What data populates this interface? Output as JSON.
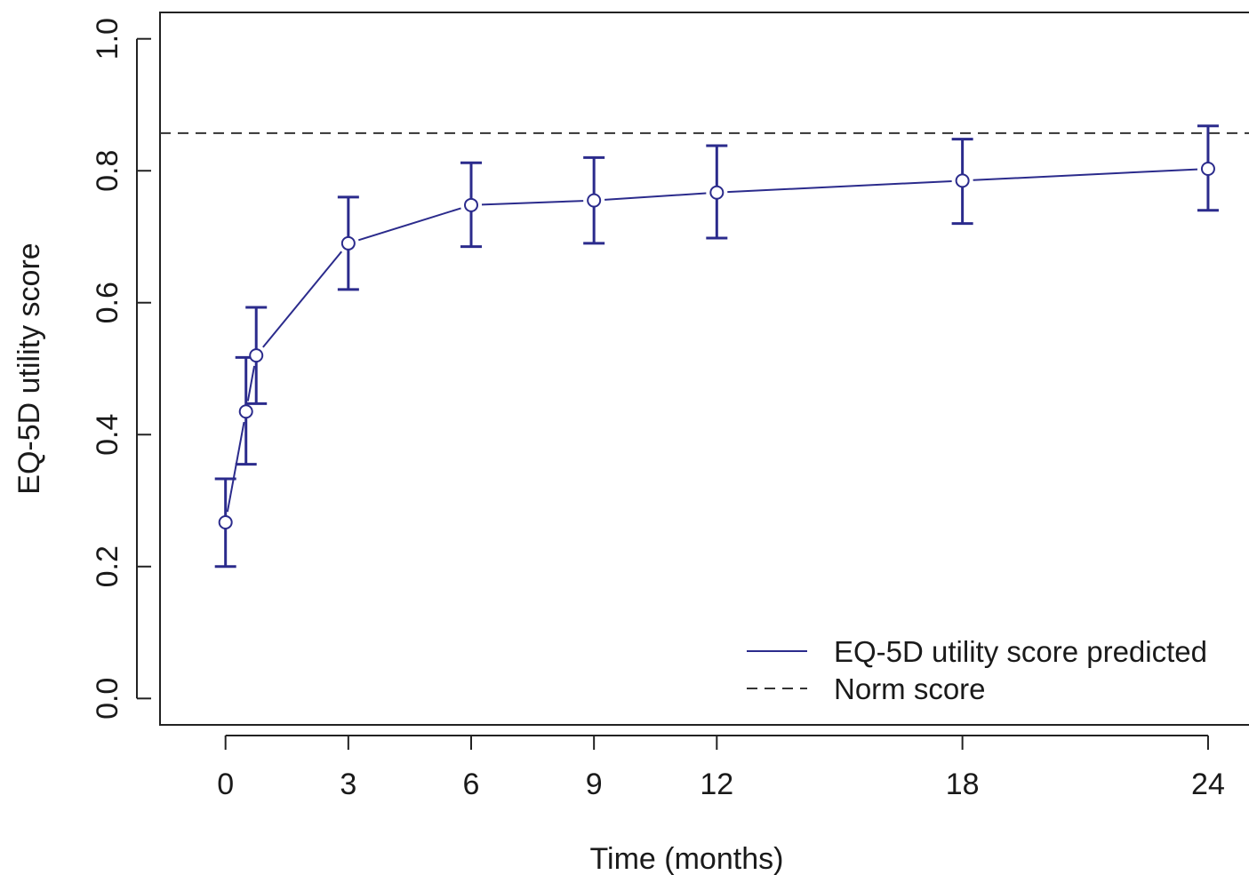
{
  "chart_data": {
    "type": "line",
    "xlabel": "Time (months)",
    "ylabel": "EQ-5D utility score",
    "xlim": [
      -1.6,
      25.0
    ],
    "ylim": [
      -0.04,
      1.04
    ],
    "x_ticks": [
      0,
      3,
      6,
      9,
      12,
      18,
      24
    ],
    "x_tick_labels": [
      "0",
      "3",
      "6",
      "9",
      "12",
      "18",
      "24"
    ],
    "y_ticks": [
      0.0,
      0.2,
      0.4,
      0.6,
      0.8,
      1.0
    ],
    "y_tick_labels": [
      "0.0",
      "0.2",
      "0.4",
      "0.6",
      "0.8",
      "1.0"
    ],
    "grid": false,
    "legend_position": "bottom-right",
    "series": [
      {
        "name": "EQ-5D utility score predicted",
        "color": "#2b2b8c",
        "style": "solid",
        "marker": "open-circle",
        "x": [
          0,
          0.5,
          0.75,
          3,
          6,
          9,
          12,
          18,
          24
        ],
        "y": [
          0.267,
          0.435,
          0.52,
          0.69,
          0.748,
          0.755,
          0.767,
          0.785,
          0.803
        ],
        "y_lower": [
          0.2,
          0.355,
          0.447,
          0.62,
          0.685,
          0.69,
          0.698,
          0.72,
          0.74
        ],
        "y_upper": [
          0.333,
          0.517,
          0.593,
          0.76,
          0.812,
          0.82,
          0.838,
          0.848,
          0.868
        ]
      },
      {
        "name": "Norm score",
        "color": "#333333",
        "style": "dashed",
        "y_constant": 0.857
      }
    ]
  }
}
